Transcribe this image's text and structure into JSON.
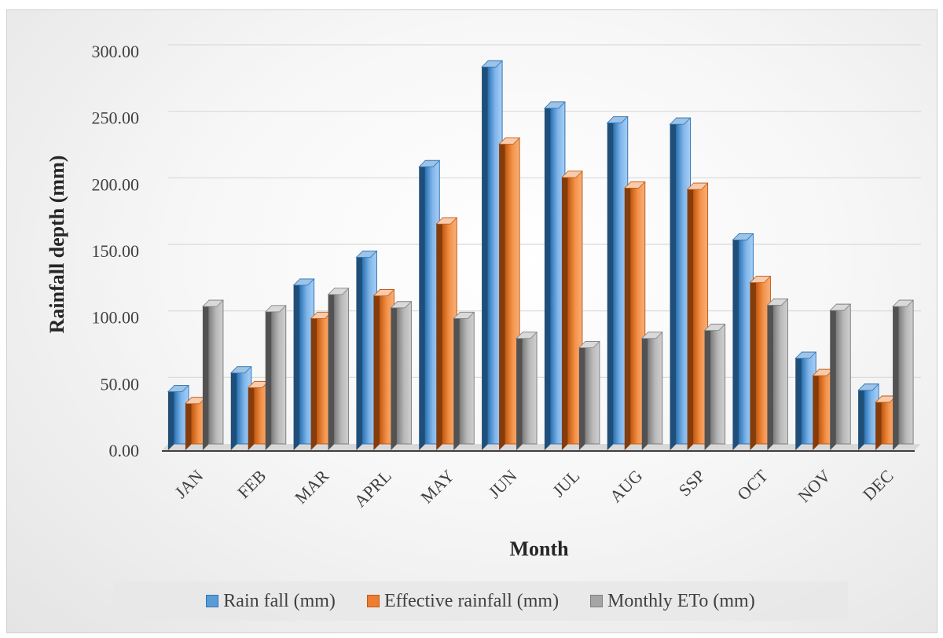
{
  "chart_data": {
    "type": "bar",
    "title": "",
    "xlabel": "Month",
    "ylabel": "Rainfall depth (mm)",
    "ylim": [
      0,
      300
    ],
    "yticks": [
      "0.00",
      "50.00",
      "100.00",
      "150.00",
      "200.00",
      "250.00",
      "300.00"
    ],
    "grid": true,
    "legend_position": "bottom",
    "categories": [
      "JAN",
      "FEB",
      "MAR",
      "APRL",
      "MAY",
      "JUN",
      "JUL",
      "AUG",
      "SSP",
      "OCT",
      "NOV",
      "DEC"
    ],
    "series": [
      {
        "name": "Rain fall (mm)",
        "color": "#5b9bd5",
        "values": [
          44,
          58,
          124,
          145,
          213,
          288,
          257,
          246,
          245,
          158,
          69,
          45
        ]
      },
      {
        "name": "Effective rainfall (mm)",
        "color": "#ed7d31",
        "values": [
          35,
          47,
          99,
          116,
          170,
          230,
          205,
          197,
          196,
          126,
          56,
          36
        ]
      },
      {
        "name": "Monthly ETo (mm)",
        "color": "#a5a5a5",
        "values": [
          108,
          104,
          117,
          107,
          99,
          84,
          77,
          84,
          90,
          109,
          105,
          108
        ]
      }
    ]
  }
}
